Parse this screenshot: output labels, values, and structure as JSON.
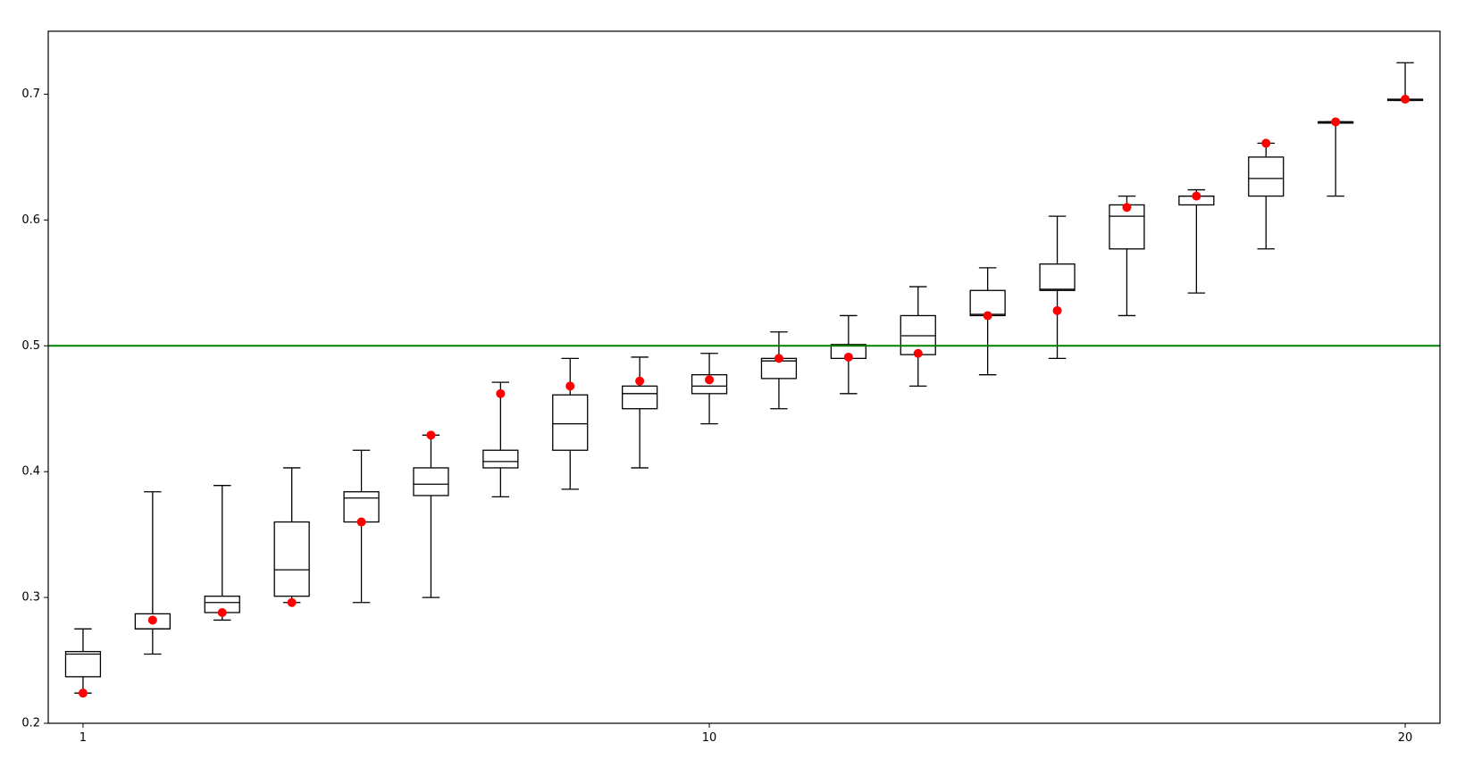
{
  "chart_data": {
    "type": "box",
    "x": [
      1,
      2,
      3,
      4,
      5,
      6,
      7,
      8,
      9,
      10,
      11,
      12,
      13,
      14,
      15,
      16,
      17,
      18,
      19,
      20
    ],
    "xlim": [
      0.5,
      20.5
    ],
    "xticks": [
      1,
      10,
      20
    ],
    "ylim": [
      0.2,
      0.75
    ],
    "yticks": [
      0.2,
      0.3,
      0.4,
      0.5,
      0.6,
      0.7
    ],
    "box_color": "#000000",
    "boxes": [
      {
        "low": 0.224,
        "q1": 0.237,
        "median": 0.255,
        "q3": 0.257,
        "high": 0.275
      },
      {
        "low": 0.255,
        "q1": 0.275,
        "median": 0.275,
        "q3": 0.287,
        "high": 0.384
      },
      {
        "low": 0.282,
        "q1": 0.288,
        "median": 0.296,
        "q3": 0.301,
        "high": 0.389
      },
      {
        "low": 0.296,
        "q1": 0.301,
        "median": 0.322,
        "q3": 0.36,
        "high": 0.403
      },
      {
        "low": 0.296,
        "q1": 0.36,
        "median": 0.379,
        "q3": 0.384,
        "high": 0.417
      },
      {
        "low": 0.3,
        "q1": 0.381,
        "median": 0.39,
        "q3": 0.403,
        "high": 0.429
      },
      {
        "low": 0.38,
        "q1": 0.403,
        "median": 0.408,
        "q3": 0.417,
        "high": 0.471
      },
      {
        "low": 0.386,
        "q1": 0.417,
        "median": 0.438,
        "q3": 0.461,
        "high": 0.49
      },
      {
        "low": 0.403,
        "q1": 0.45,
        "median": 0.462,
        "q3": 0.468,
        "high": 0.491
      },
      {
        "low": 0.438,
        "q1": 0.462,
        "median": 0.468,
        "q3": 0.477,
        "high": 0.494
      },
      {
        "low": 0.45,
        "q1": 0.474,
        "median": 0.488,
        "q3": 0.49,
        "high": 0.511
      },
      {
        "low": 0.462,
        "q1": 0.49,
        "median": 0.5,
        "q3": 0.501,
        "high": 0.524
      },
      {
        "low": 0.468,
        "q1": 0.493,
        "median": 0.508,
        "q3": 0.524,
        "high": 0.547
      },
      {
        "low": 0.477,
        "q1": 0.524,
        "median": 0.525,
        "q3": 0.544,
        "high": 0.562
      },
      {
        "low": 0.49,
        "q1": 0.544,
        "median": 0.545,
        "q3": 0.565,
        "high": 0.603
      },
      {
        "low": 0.524,
        "q1": 0.577,
        "median": 0.603,
        "q3": 0.612,
        "high": 0.619
      },
      {
        "low": 0.542,
        "q1": 0.612,
        "median": 0.619,
        "q3": 0.619,
        "high": 0.624
      },
      {
        "low": 0.577,
        "q1": 0.619,
        "median": 0.633,
        "q3": 0.65,
        "high": 0.661
      },
      {
        "low": 0.619,
        "q1": 0.677,
        "median": 0.678,
        "q3": 0.678,
        "high": 0.678
      },
      {
        "low": 0.695,
        "q1": 0.695,
        "median": 0.696,
        "q3": 0.696,
        "high": 0.725
      }
    ],
    "points": {
      "color": "#ff0000",
      "values": [
        0.224,
        0.282,
        0.288,
        0.296,
        0.36,
        0.429,
        0.462,
        0.468,
        0.472,
        0.473,
        0.49,
        0.491,
        0.494,
        0.524,
        0.528,
        0.61,
        0.619,
        0.661,
        0.678,
        0.696
      ]
    },
    "hline": {
      "value": 0.5,
      "color": "#008000"
    }
  }
}
